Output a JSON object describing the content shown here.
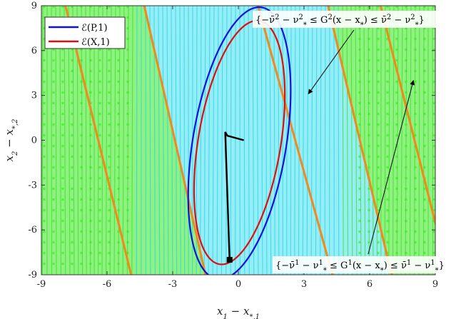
{
  "chart_data": {
    "type": "line",
    "xlabel": "x_1 − x_{*,1}",
    "ylabel": "x_2 − x_{*,2}",
    "xlim": [
      -9,
      9
    ],
    "ylim": [
      -9,
      9
    ],
    "xticks": [
      "-9",
      "-6",
      "-3",
      "0",
      "3",
      "6",
      "9"
    ],
    "yticks": [
      "-9",
      "-6",
      "-3",
      "0",
      "3",
      "6",
      "9"
    ],
    "grid": false,
    "legend_position": "top-left",
    "colors": {
      "P_ellipse": "#1010e0",
      "X_ellipse": "#dd1010",
      "trajectory": "#000000",
      "constraint_lines": "#f08a1c",
      "region_1": "#33e61a",
      "region_2": "#19d8ec"
    },
    "series": [
      {
        "name": "ℰ(P,1)",
        "kind": "ellipse",
        "center": [
          0.05,
          -0.2
        ],
        "semi_axes": [
          2.15,
          9.15
        ],
        "tilt_deg": -6
      },
      {
        "name": "ℰ(X,1)",
        "kind": "ellipse",
        "center": [
          0.05,
          -0.15
        ],
        "semi_axes": [
          1.9,
          8.2
        ],
        "tilt_deg": -6
      },
      {
        "kind": "trajectory",
        "points": [
          [
            -0.4,
            -8.0
          ],
          [
            -0.6,
            0.55
          ],
          [
            -0.5,
            0.3
          ],
          [
            0.25,
            0.0
          ]
        ],
        "start_marker": [
          -0.4,
          -8.0
        ]
      }
    ],
    "constraint_lines": [
      {
        "x_at_top": -7.9,
        "x_at_bottom": -4.9
      },
      {
        "x_at_top": -4.3,
        "x_at_bottom": -1.5
      },
      {
        "x_at_top": 0.9,
        "x_at_bottom": 4.3
      },
      {
        "x_at_top": 4.1,
        "x_at_bottom": 7.0
      },
      {
        "x_at_top": 6.5,
        "x_at_bottom": 9.6
      }
    ],
    "annotations": [
      {
        "text_parts": [
          "{−ν̄",
          "2",
          " − ν",
          "2",
          "*",
          " ≤ G",
          "2",
          "(x − x",
          "*",
          ") ≤ ν̄",
          "2",
          " − ν",
          "2",
          "*",
          "}"
        ],
        "arrow_to": [
          3.2,
          3.1
        ]
      },
      {
        "text_parts": [
          "{−ν̄",
          "1",
          " − ν",
          "1",
          "*",
          " ≤ G",
          "1",
          "(x − x",
          "*",
          ") ≤ ν̄",
          "1",
          " − ν",
          "1",
          "*",
          "}"
        ],
        "arrow_to": [
          8.0,
          4.0
        ]
      }
    ]
  }
}
